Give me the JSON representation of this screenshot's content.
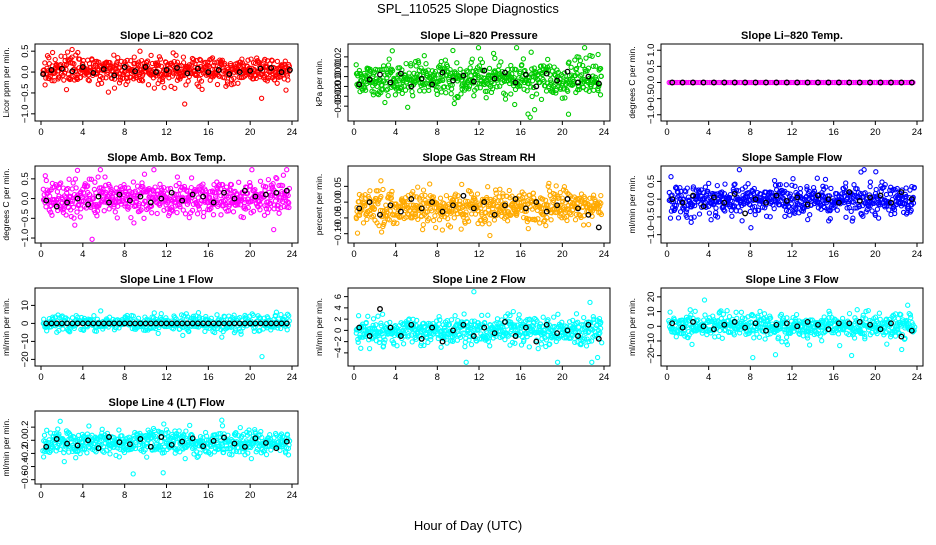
{
  "figure": {
    "title": "SPL_110525  Slope Diagnostics",
    "xlabel": "Hour of Day (UTC)"
  },
  "chart_data": [
    {
      "type": "scatter",
      "title": "Slope Li–820 CO2",
      "ylabel": "Licor ppm per min.",
      "color": "#ff0000",
      "xlim": [
        0,
        24
      ],
      "ylim": [
        -1.1,
        0.6
      ],
      "xticks": [
        0,
        4,
        8,
        12,
        16,
        20,
        24
      ],
      "yticks": [
        -1.0,
        -0.5,
        0.0,
        0.5
      ],
      "yticklabels": [
        "−1.0",
        "−0.5",
        "0.0",
        "0.5"
      ],
      "black_points": [
        [
          0.2,
          -0.05
        ],
        [
          1,
          0.05
        ],
        [
          2,
          0.08
        ],
        [
          3,
          0.02
        ],
        [
          4,
          0.12
        ],
        [
          5,
          -0.02
        ],
        [
          6,
          0.07
        ],
        [
          7,
          -0.08
        ],
        [
          8,
          0.12
        ],
        [
          9,
          0.02
        ],
        [
          10,
          0.12
        ],
        [
          11,
          0.0
        ],
        [
          12,
          0.05
        ],
        [
          13,
          0.1
        ],
        [
          14,
          -0.03
        ],
        [
          15,
          0.08
        ],
        [
          16,
          0.0
        ],
        [
          17,
          0.05
        ],
        [
          18,
          -0.05
        ],
        [
          19,
          0.0
        ],
        [
          20,
          0.03
        ],
        [
          21,
          0.08
        ],
        [
          22,
          0.1
        ],
        [
          23,
          0.0
        ],
        [
          23.8,
          0.05
        ]
      ]
    },
    {
      "type": "scatter",
      "title": "Slope Li–820 Pressure",
      "ylabel": "kPa per min.",
      "color": "#00cc00",
      "xlim": [
        0,
        24
      ],
      "ylim": [
        -0.042,
        0.03
      ],
      "xticks": [
        0,
        4,
        8,
        12,
        16,
        20,
        24
      ],
      "yticks": [
        -0.03,
        -0.02,
        -0.01,
        0.0,
        0.01,
        0.02
      ],
      "yticklabels": [
        "−0.03",
        "−0.02",
        "−0.01",
        "0.00",
        "0.01",
        "0.02"
      ],
      "black_points": [
        [
          0.5,
          -0.008
        ],
        [
          1.5,
          -0.003
        ],
        [
          2.5,
          0.002
        ],
        [
          3.5,
          -0.006
        ],
        [
          4.5,
          0.003
        ],
        [
          5.5,
          -0.01
        ],
        [
          6.5,
          -0.002
        ],
        [
          7.5,
          -0.008
        ],
        [
          8.5,
          0.004
        ],
        [
          9.5,
          -0.004
        ],
        [
          10.5,
          0.001
        ],
        [
          11.5,
          -0.005
        ],
        [
          12.5,
          0.006
        ],
        [
          13.5,
          -0.002
        ],
        [
          14.5,
          0.004
        ],
        [
          15.5,
          -0.006
        ],
        [
          16.5,
          0.002
        ],
        [
          17.5,
          -0.01
        ],
        [
          18.5,
          0.003
        ],
        [
          19.5,
          -0.004
        ],
        [
          20.5,
          0.005
        ],
        [
          21.5,
          -0.006
        ],
        [
          22.5,
          0.0
        ],
        [
          23.5,
          -0.007
        ]
      ]
    },
    {
      "type": "scatter",
      "title": "Slope Li–820 Temp.",
      "ylabel": "degrees C per min.",
      "color": "#ff00ff",
      "xlim": [
        0,
        24
      ],
      "ylim": [
        -1.1,
        1.1
      ],
      "xticks": [
        0,
        4,
        8,
        12,
        16,
        20,
        24
      ],
      "yticks": [
        -1.0,
        -0.5,
        0.0,
        0.5,
        1.0
      ],
      "yticklabels": [
        "−1.0",
        "−0.5",
        "0.0",
        "0.5",
        "1.0"
      ],
      "black_points": [
        [
          0.5,
          0
        ],
        [
          1.5,
          0
        ],
        [
          2.5,
          0
        ],
        [
          3.5,
          0
        ],
        [
          4.5,
          0
        ],
        [
          5.5,
          0
        ],
        [
          6.5,
          0
        ],
        [
          7.5,
          0
        ],
        [
          8.5,
          0
        ],
        [
          9.5,
          0
        ],
        [
          10.5,
          0
        ],
        [
          11.5,
          0
        ],
        [
          12.5,
          0
        ],
        [
          13.5,
          0
        ],
        [
          14.5,
          0
        ],
        [
          15.5,
          0
        ],
        [
          16.5,
          0
        ],
        [
          17.5,
          0
        ],
        [
          18.5,
          0
        ],
        [
          19.5,
          0
        ],
        [
          20.5,
          0
        ],
        [
          21.5,
          0
        ],
        [
          22.5,
          0
        ],
        [
          23.5,
          0
        ]
      ]
    },
    {
      "type": "scatter",
      "title": "Slope Amb. Box Temp.",
      "ylabel": "degrees C per min.",
      "color": "#ff00ff",
      "xlim": [
        0,
        24
      ],
      "ylim": [
        -1.05,
        0.75
      ],
      "xticks": [
        0,
        4,
        8,
        12,
        16,
        20,
        24
      ],
      "yticks": [
        -1.0,
        -0.5,
        0.0,
        0.5
      ],
      "yticklabels": [
        "−1.0",
        "−0.5",
        "0.0",
        "0.5"
      ],
      "black_points": [
        [
          0.5,
          -0.05
        ],
        [
          1.5,
          -0.2
        ],
        [
          2.5,
          -0.1
        ],
        [
          3.5,
          0.0
        ],
        [
          4.5,
          -0.15
        ],
        [
          5.5,
          0.05
        ],
        [
          6.5,
          -0.1
        ],
        [
          7.5,
          0.1
        ],
        [
          8.5,
          -0.05
        ],
        [
          9.5,
          0.05
        ],
        [
          10.5,
          -0.1
        ],
        [
          11.5,
          0.0
        ],
        [
          12.5,
          0.15
        ],
        [
          13.5,
          -0.05
        ],
        [
          14.5,
          0.1
        ],
        [
          15.5,
          0.05
        ],
        [
          16.5,
          -0.1
        ],
        [
          17.5,
          0.15
        ],
        [
          18.5,
          0.0
        ],
        [
          19.5,
          0.2
        ],
        [
          20.5,
          0.05
        ],
        [
          21.5,
          0.1
        ],
        [
          22.5,
          0.15
        ],
        [
          23.5,
          0.2
        ]
      ]
    },
    {
      "type": "scatter",
      "title": "Slope Gas Stream RH",
      "ylabel": "percent per min.",
      "color": "#ffaa00",
      "xlim": [
        0,
        24
      ],
      "ylim": [
        -0.12,
        0.105
      ],
      "xticks": [
        0,
        4,
        8,
        12,
        16,
        20,
        24
      ],
      "yticks": [
        -0.1,
        -0.05,
        0.0,
        0.05
      ],
      "yticklabels": [
        "−0.10",
        "−0.05",
        "0.00",
        "0.05"
      ],
      "black_points": [
        [
          0.5,
          -0.02
        ],
        [
          1.5,
          0.0
        ],
        [
          2.5,
          -0.04
        ],
        [
          3.5,
          -0.01
        ],
        [
          4.5,
          -0.03
        ],
        [
          5.5,
          0.01
        ],
        [
          6.5,
          -0.02
        ],
        [
          7.5,
          0.0
        ],
        [
          8.5,
          -0.03
        ],
        [
          9.5,
          -0.01
        ],
        [
          10.5,
          0.02
        ],
        [
          11.5,
          -0.02
        ],
        [
          12.5,
          0.0
        ],
        [
          13.5,
          -0.04
        ],
        [
          14.5,
          -0.01
        ],
        [
          15.5,
          0.01
        ],
        [
          16.5,
          -0.02
        ],
        [
          17.5,
          0.0
        ],
        [
          18.5,
          -0.03
        ],
        [
          19.5,
          -0.01
        ],
        [
          20.5,
          0.01
        ],
        [
          21.5,
          -0.02
        ],
        [
          22.5,
          -0.04
        ],
        [
          23.5,
          -0.08
        ]
      ]
    },
    {
      "type": "scatter",
      "title": "Slope Sample Flow",
      "ylabel": "ml/min per min.",
      "color": "#0000ff",
      "xlim": [
        0,
        24
      ],
      "ylim": [
        -1.15,
        0.85
      ],
      "xticks": [
        0,
        4,
        8,
        12,
        16,
        20,
        24
      ],
      "yticks": [
        -1.0,
        -0.5,
        0.0,
        0.5
      ],
      "yticklabels": [
        "−1.0",
        "−0.5",
        "0.0",
        "0.5"
      ],
      "black_points": [
        [
          0.5,
          0.0
        ],
        [
          1.5,
          -0.1
        ],
        [
          2.5,
          0.1
        ],
        [
          3.5,
          -0.2
        ],
        [
          4.5,
          0.05
        ],
        [
          5.5,
          -0.1
        ],
        [
          6.5,
          0.15
        ],
        [
          7.5,
          -0.4
        ],
        [
          8.5,
          0.0
        ],
        [
          9.5,
          -0.1
        ],
        [
          10.5,
          0.1
        ],
        [
          11.5,
          -0.05
        ],
        [
          12.5,
          0.05
        ],
        [
          13.5,
          -0.15
        ],
        [
          14.5,
          0.1
        ],
        [
          15.5,
          0.0
        ],
        [
          16.5,
          -0.1
        ],
        [
          17.5,
          0.2
        ],
        [
          18.5,
          -0.05
        ],
        [
          19.5,
          0.05
        ],
        [
          20.5,
          0.1
        ],
        [
          21.5,
          -0.1
        ],
        [
          22.5,
          0.2
        ],
        [
          23.5,
          0.0
        ]
      ]
    },
    {
      "type": "scatter",
      "title": "Slope Line 1 Flow",
      "ylabel": "ml/min per min.",
      "color": "#00ffff",
      "xlim": [
        0,
        24
      ],
      "ylim": [
        -22,
        18
      ],
      "xticks": [
        0,
        4,
        8,
        12,
        16,
        20,
        24
      ],
      "yticks": [
        -20,
        -10,
        0,
        10
      ],
      "yticklabels": [
        "−20",
        "−10",
        "0",
        "10"
      ],
      "black_points": [
        [
          0.5,
          0
        ],
        [
          1,
          0
        ],
        [
          1.5,
          0
        ],
        [
          2,
          0
        ],
        [
          2.5,
          0
        ],
        [
          3,
          0
        ],
        [
          3.5,
          0
        ],
        [
          4,
          0
        ],
        [
          4.5,
          0
        ],
        [
          5,
          0
        ],
        [
          5.5,
          0
        ],
        [
          6,
          0
        ],
        [
          6.5,
          0
        ],
        [
          7,
          0
        ],
        [
          7.5,
          0
        ],
        [
          8,
          0
        ],
        [
          8.5,
          0
        ],
        [
          9,
          0
        ],
        [
          9.5,
          0
        ],
        [
          10,
          0
        ],
        [
          10.5,
          0
        ],
        [
          11,
          0
        ],
        [
          11.5,
          0
        ],
        [
          12,
          0
        ],
        [
          12.5,
          0
        ],
        [
          13,
          0
        ],
        [
          13.5,
          0
        ],
        [
          14,
          0
        ],
        [
          14.5,
          0
        ],
        [
          15,
          0
        ],
        [
          15.5,
          0
        ],
        [
          16,
          0
        ],
        [
          16.5,
          0
        ],
        [
          17,
          0
        ],
        [
          17.5,
          0
        ],
        [
          18,
          0
        ],
        [
          18.5,
          0
        ],
        [
          19,
          0
        ],
        [
          19.5,
          0
        ],
        [
          20,
          0
        ],
        [
          20.5,
          0
        ],
        [
          21,
          0
        ],
        [
          21.5,
          0
        ],
        [
          22,
          0
        ],
        [
          22.5,
          0
        ],
        [
          23,
          0
        ],
        [
          23.5,
          0
        ]
      ]
    },
    {
      "type": "scatter",
      "title": "Slope Line 2 Flow",
      "ylabel": "ml/min per min.",
      "color": "#00ffff",
      "xlim": [
        0,
        24
      ],
      "ylim": [
        -5.8,
        7
      ],
      "xticks": [
        0,
        4,
        8,
        12,
        16,
        20,
        24
      ],
      "yticks": [
        -4,
        -2,
        0,
        2,
        4,
        6
      ],
      "yticklabels": [
        "−4",
        "−2",
        "0",
        "2",
        "4",
        "6"
      ],
      "black_points": [
        [
          0.5,
          0.5
        ],
        [
          1.5,
          -1
        ],
        [
          2.5,
          3.8
        ],
        [
          3.5,
          0.5
        ],
        [
          4.5,
          -1
        ],
        [
          5.5,
          1
        ],
        [
          6.5,
          -1.5
        ],
        [
          7.5,
          0.5
        ],
        [
          8.5,
          -2
        ],
        [
          9.5,
          0
        ],
        [
          10.5,
          1
        ],
        [
          11.5,
          -1
        ],
        [
          12.5,
          0.5
        ],
        [
          13.5,
          -0.5
        ],
        [
          14.5,
          1.5
        ],
        [
          15.5,
          -1
        ],
        [
          16.5,
          0.5
        ],
        [
          17.5,
          -2
        ],
        [
          18.5,
          1
        ],
        [
          19.5,
          -0.5
        ],
        [
          20.5,
          0
        ],
        [
          21.5,
          -1
        ],
        [
          22.5,
          1
        ],
        [
          23.5,
          -1.5
        ]
      ]
    },
    {
      "type": "scatter",
      "title": "Slope Line 3 Flow",
      "ylabel": "ml/min per min.",
      "color": "#00ffff",
      "xlim": [
        0,
        24
      ],
      "ylim": [
        -25,
        24
      ],
      "xticks": [
        0,
        4,
        8,
        12,
        16,
        20,
        24
      ],
      "yticks": [
        -20,
        -10,
        0,
        10,
        20
      ],
      "yticklabels": [
        "−20",
        "−10",
        "0",
        "10",
        "20"
      ],
      "black_points": [
        [
          0.5,
          2
        ],
        [
          1.5,
          -1
        ],
        [
          2.5,
          3
        ],
        [
          3.5,
          0
        ],
        [
          4.5,
          -2
        ],
        [
          5.5,
          1
        ],
        [
          6.5,
          3
        ],
        [
          7.5,
          -1
        ],
        [
          8.5,
          2
        ],
        [
          9.5,
          -3
        ],
        [
          10.5,
          1
        ],
        [
          11.5,
          2
        ],
        [
          12.5,
          0
        ],
        [
          13.5,
          3
        ],
        [
          14.5,
          1
        ],
        [
          15.5,
          -2
        ],
        [
          16.5,
          2
        ],
        [
          17.5,
          2
        ],
        [
          18.5,
          3
        ],
        [
          19.5,
          1
        ],
        [
          20.5,
          -2
        ],
        [
          21.5,
          2
        ],
        [
          22.5,
          -7
        ],
        [
          23.5,
          -3
        ]
      ]
    },
    {
      "type": "scatter",
      "title": "Slope Line 4 (LT) Flow",
      "ylabel": "ml/min per min.",
      "color": "#00ffff",
      "xlim": [
        0,
        24
      ],
      "ylim": [
        -0.62,
        0.4
      ],
      "xticks": [
        0,
        4,
        8,
        12,
        16,
        20,
        24
      ],
      "yticks": [
        -0.6,
        -0.4,
        -0.2,
        0.0,
        0.2
      ],
      "yticklabels": [
        "−0.6",
        "−0.4",
        "−0.2",
        "0.0",
        "0.2"
      ],
      "black_points": [
        [
          0.5,
          -0.1
        ],
        [
          1.5,
          0.02
        ],
        [
          2.5,
          -0.05
        ],
        [
          3.5,
          -0.08
        ],
        [
          4.5,
          0.0
        ],
        [
          5.5,
          -0.12
        ],
        [
          6.5,
          0.05
        ],
        [
          7.5,
          -0.03
        ],
        [
          8.5,
          -0.06
        ],
        [
          9.5,
          0.02
        ],
        [
          10.5,
          -0.1
        ],
        [
          11.5,
          0.05
        ],
        [
          12.5,
          -0.07
        ],
        [
          13.5,
          -0.02
        ],
        [
          14.5,
          0.03
        ],
        [
          15.5,
          -0.09
        ],
        [
          16.5,
          -0.01
        ],
        [
          17.5,
          0.04
        ],
        [
          18.5,
          -0.05
        ],
        [
          19.5,
          -0.1
        ],
        [
          20.5,
          0.03
        ],
        [
          21.5,
          -0.04
        ],
        [
          22.5,
          -0.12
        ],
        [
          23.5,
          -0.02
        ]
      ]
    }
  ]
}
